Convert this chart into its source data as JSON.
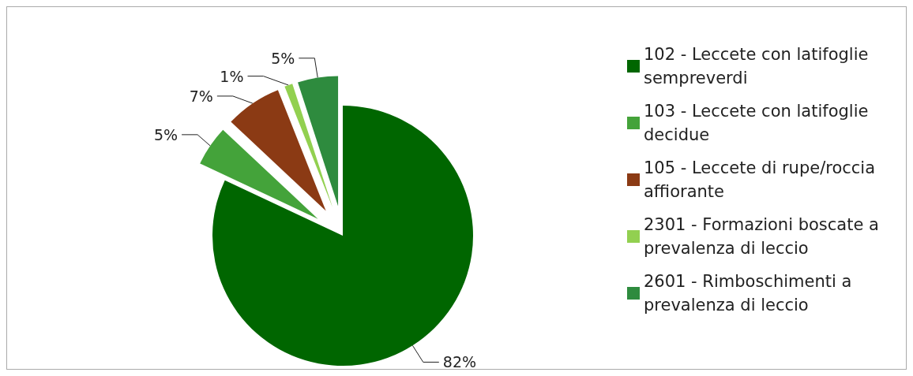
{
  "chart_data": {
    "type": "pie",
    "categories": [
      "102 - Leccete con latifoglie sempreverdi",
      "103 - Leccete con latifoglie decidue",
      "105 - Leccete di rupe/roccia affiorante",
      "2301 - Formazioni boscate a prevalenza di leccio",
      "2601 - Rimboschimenti a prevalenza di leccio"
    ],
    "values": [
      82,
      5,
      7,
      1,
      5
    ],
    "colors": [
      "#006600",
      "#44a33a",
      "#8b3a14",
      "#92d050",
      "#2e8b3e"
    ],
    "value_labels": [
      "82%",
      "5%",
      "7%",
      "1%",
      "5%"
    ],
    "legend": "right"
  }
}
